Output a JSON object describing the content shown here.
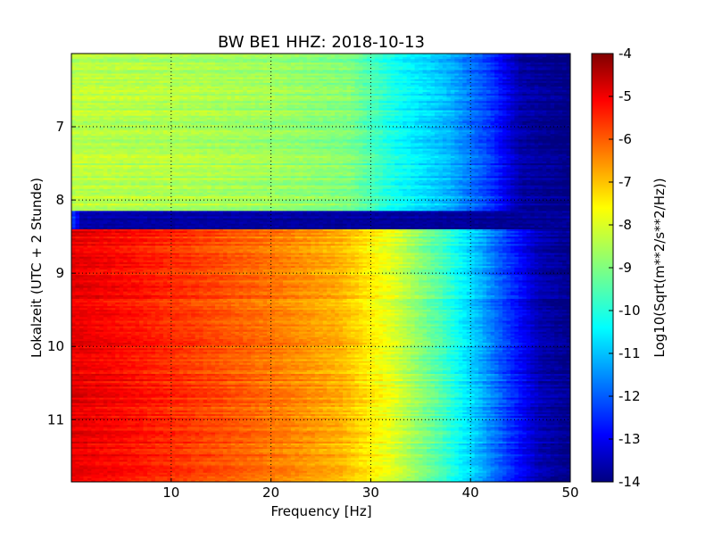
{
  "chart_data": {
    "type": "heatmap",
    "title": "BW BE1 HHZ: 2018-10-13",
    "xlabel": "Frequency [Hz]",
    "ylabel": "Lokalzeit (UTC + 2 Stunde)",
    "colorbar_label": "Log10(Sqrt(m**2/s**2/Hz))",
    "colormap": "jet",
    "grid": true,
    "xlim": [
      0,
      50
    ],
    "ylim": [
      6.0,
      11.85
    ],
    "y_inverted": true,
    "x_ticks": [
      "10",
      "20",
      "30",
      "40",
      "50"
    ],
    "y_ticks": [
      "7",
      "8",
      "9",
      "10",
      "11"
    ],
    "clim": [
      -14,
      -4
    ],
    "colorbar_ticks": [
      "-4",
      "-5",
      "-6",
      "-7",
      "-8",
      "-9",
      "-10",
      "-11",
      "-12",
      "-13",
      "-14"
    ],
    "segments": [
      {
        "time_range": [
          6.0,
          8.15
        ],
        "psd_profile": [
          {
            "freq": 0,
            "value": -8.4
          },
          {
            "freq": 10,
            "value": -8.5
          },
          {
            "freq": 20,
            "value": -8.7
          },
          {
            "freq": 28,
            "value": -9.0
          },
          {
            "freq": 32,
            "value": -10.0
          },
          {
            "freq": 38,
            "value": -11.0
          },
          {
            "freq": 42,
            "value": -12.2
          },
          {
            "freq": 45,
            "value": -13.6
          },
          {
            "freq": 50,
            "value": -14.0
          }
        ]
      },
      {
        "time_range": [
          8.15,
          8.4
        ],
        "psd_profile": [
          {
            "freq": 0,
            "value": -12.0
          },
          {
            "freq": 1,
            "value": -13.6
          },
          {
            "freq": 50,
            "value": -13.8
          }
        ]
      },
      {
        "time_range": [
          8.4,
          11.85
        ],
        "psd_profile": [
          {
            "freq": 0,
            "value": -5.0
          },
          {
            "freq": 5,
            "value": -5.3
          },
          {
            "freq": 12,
            "value": -5.8
          },
          {
            "freq": 20,
            "value": -6.4
          },
          {
            "freq": 27,
            "value": -7.0
          },
          {
            "freq": 32,
            "value": -8.0
          },
          {
            "freq": 37,
            "value": -9.5
          },
          {
            "freq": 41,
            "value": -11.0
          },
          {
            "freq": 44,
            "value": -12.3
          },
          {
            "freq": 47,
            "value": -13.5
          },
          {
            "freq": 50,
            "value": -13.9
          }
        ]
      }
    ]
  }
}
